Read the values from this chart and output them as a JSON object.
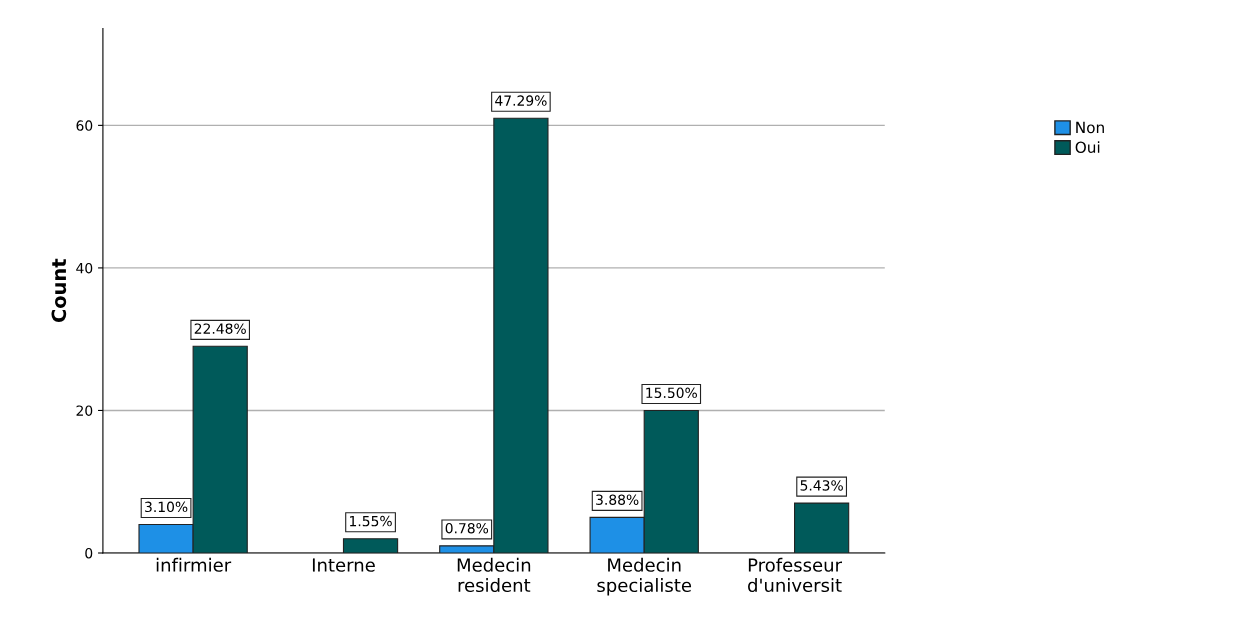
{
  "chart_data": {
    "type": "bar",
    "ylabel": "Count",
    "categories": [
      "infirmier",
      "Interne",
      "Medecin\nresident",
      "Medecin\nspecialiste",
      "Professeur\nd'universit"
    ],
    "series": [
      {
        "name": "Non",
        "color": "#1e90e6",
        "values": [
          4,
          null,
          1,
          5,
          null
        ]
      },
      {
        "name": "Oui",
        "color": "#005a5a",
        "values": [
          29,
          2,
          61,
          20,
          7
        ]
      }
    ],
    "annotations": [
      {
        "text": "3.10%",
        "x": "infirmier",
        "y": 4
      },
      {
        "text": "22.48%",
        "x": "infirmier",
        "y": 29
      },
      {
        "text": "1.55%",
        "x": "Interne",
        "y": 2
      },
      {
        "text": "0.78%",
        "x": "Medecin\nresident",
        "y": 1
      },
      {
        "text": "47.29%",
        "x": "Medecin\nresident",
        "y": 61
      },
      {
        "text": "3.88%",
        "x": "Medecin\nspecialiste",
        "y": 5
      },
      {
        "text": "15.50%",
        "x": "Medecin\nspecialiste",
        "y": 20
      },
      {
        "text": "5.43%",
        "x": "Professeur\nd'universit",
        "y": 7
      }
    ],
    "ylim": [
      0,
      73.6
    ],
    "yticks": [
      0,
      20,
      40,
      60
    ],
    "grid": "y",
    "legend": "top right"
  }
}
